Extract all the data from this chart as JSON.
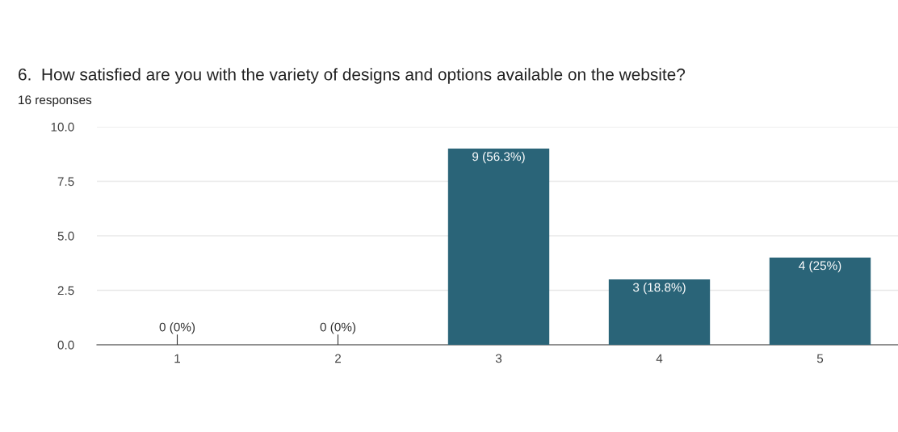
{
  "chart_data": {
    "type": "bar",
    "title": "6.  How satisfied are you with the variety of designs and options available on the website?",
    "subtitle": "16 responses",
    "categories": [
      "1",
      "2",
      "3",
      "4",
      "5"
    ],
    "values": [
      0,
      0,
      9,
      3,
      4
    ],
    "value_labels": [
      "0 (0%)",
      "0 (0%)",
      "9 (56.3%)",
      "3 (18.8%)",
      "4 (25%)"
    ],
    "color": "#2a6478",
    "ylim": [
      0,
      10
    ],
    "yticks": [
      {
        "value": 0,
        "label": "0.0"
      },
      {
        "value": 2.5,
        "label": "2.5"
      },
      {
        "value": 5,
        "label": "5.0"
      },
      {
        "value": 7.5,
        "label": "7.5"
      },
      {
        "value": 10,
        "label": "10.0"
      }
    ],
    "grid": "y"
  }
}
